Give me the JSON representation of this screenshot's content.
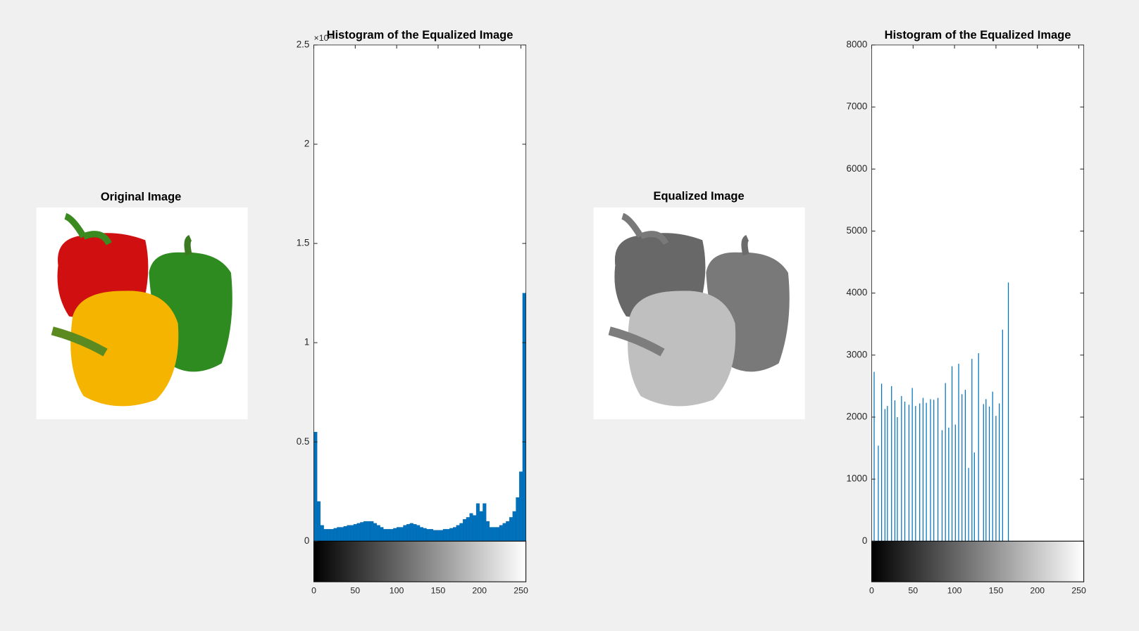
{
  "images": [
    {
      "title": "Original Image"
    },
    {
      "title": "Equalized Image"
    }
  ],
  "chart_data": [
    {
      "type": "histogram",
      "title": "Histogram of the Equalized Image",
      "y_multiplier": "×10⁴",
      "color": "#0072bd",
      "bins": [
        0,
        4,
        8,
        12,
        16,
        20,
        24,
        28,
        32,
        36,
        40,
        44,
        48,
        52,
        56,
        60,
        64,
        68,
        72,
        76,
        80,
        84,
        88,
        92,
        96,
        100,
        104,
        108,
        112,
        116,
        120,
        124,
        128,
        132,
        136,
        140,
        144,
        148,
        152,
        156,
        160,
        164,
        168,
        172,
        176,
        180,
        184,
        188,
        192,
        196,
        200,
        204,
        208,
        212,
        216,
        220,
        224,
        228,
        232,
        236,
        240,
        244,
        248,
        252,
        256
      ],
      "values": [
        0.55,
        0.2,
        0.08,
        0.06,
        0.06,
        0.06,
        0.065,
        0.07,
        0.07,
        0.075,
        0.08,
        0.08,
        0.085,
        0.09,
        0.095,
        0.1,
        0.1,
        0.1,
        0.09,
        0.08,
        0.07,
        0.06,
        0.06,
        0.06,
        0.065,
        0.07,
        0.07,
        0.08,
        0.085,
        0.09,
        0.085,
        0.08,
        0.07,
        0.065,
        0.06,
        0.06,
        0.055,
        0.055,
        0.055,
        0.06,
        0.06,
        0.065,
        0.07,
        0.08,
        0.09,
        0.11,
        0.12,
        0.14,
        0.13,
        0.19,
        0.15,
        0.19,
        0.1,
        0.07,
        0.07,
        0.07,
        0.08,
        0.09,
        0.1,
        0.12,
        0.15,
        0.22,
        0.35,
        1.25
      ],
      "xlim": [
        0,
        256
      ],
      "xticks": [
        0,
        50,
        100,
        150,
        200,
        250
      ],
      "ylim": [
        0,
        2.5
      ],
      "yticks": [
        0,
        0.5,
        1,
        1.5,
        2,
        2.5
      ]
    },
    {
      "type": "bar",
      "title": "Histogram of the Equalized Image",
      "color": "#0072bd",
      "x": [
        3,
        8,
        12,
        16,
        19,
        24,
        28,
        31,
        36,
        40,
        45,
        49,
        53,
        58,
        62,
        66,
        71,
        75,
        80,
        85,
        89,
        93,
        97,
        101,
        105,
        109,
        113,
        117,
        121,
        124,
        129,
        135,
        138,
        142,
        146,
        150,
        154,
        158,
        165
      ],
      "values": [
        2730,
        1540,
        2540,
        2130,
        2180,
        2500,
        2270,
        2000,
        2340,
        2250,
        2200,
        2470,
        2180,
        2220,
        2310,
        2230,
        2290,
        2280,
        2310,
        1790,
        2550,
        1830,
        2820,
        1880,
        2860,
        2370,
        2440,
        1180,
        2940,
        1430,
        3030,
        2210,
        2290,
        2170,
        2410,
        2020,
        2220,
        3410,
        4170
      ],
      "xlim": [
        0,
        256
      ],
      "xticks": [
        0,
        50,
        100,
        150,
        200,
        250
      ],
      "ylim": [
        0,
        8000
      ],
      "yticks": [
        0,
        1000,
        2000,
        3000,
        4000,
        5000,
        6000,
        7000,
        8000
      ]
    }
  ]
}
